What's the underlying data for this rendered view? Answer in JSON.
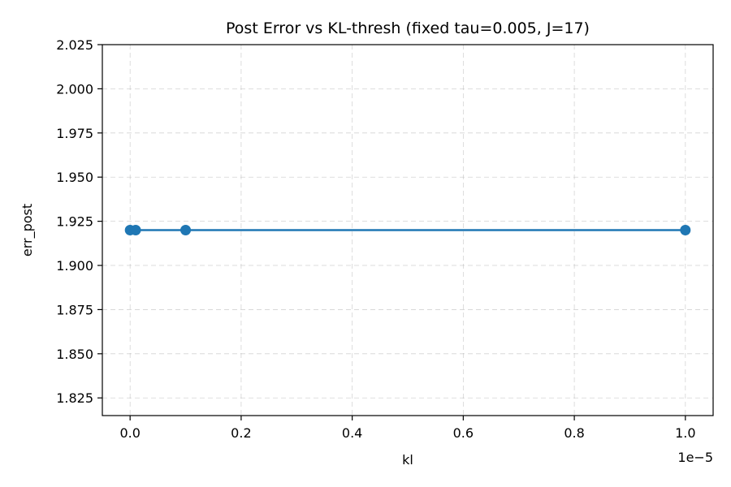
{
  "chart_data": {
    "type": "line",
    "title": "Post Error vs KL-thresh (fixed tau=0.005, J=17)",
    "xlabel": "kl",
    "ylabel": "err_post",
    "x_offset_label": "1e−5",
    "x_scale_factor": 1e-05,
    "xlim": [
      -5e-07,
      1.05e-05
    ],
    "ylim": [
      1.815,
      2.025
    ],
    "x_ticks": [
      0.0,
      2e-06,
      4e-06,
      6e-06,
      8e-06,
      1e-05
    ],
    "x_tick_labels": [
      "0.0",
      "0.2",
      "0.4",
      "0.6",
      "0.8",
      "1.0"
    ],
    "y_ticks": [
      1.825,
      1.85,
      1.875,
      1.9,
      1.925,
      1.95,
      1.975,
      2.0,
      2.025
    ],
    "y_tick_labels": [
      "1.825",
      "1.850",
      "1.875",
      "1.900",
      "1.925",
      "1.950",
      "1.975",
      "2.000",
      "2.025"
    ],
    "grid": true,
    "series": [
      {
        "x": [
          0.0,
          1e-07,
          1e-06,
          1e-05
        ],
        "y": [
          1.92,
          1.92,
          1.92,
          1.92
        ],
        "color": "#1f77b4",
        "marker": "circle"
      }
    ]
  }
}
